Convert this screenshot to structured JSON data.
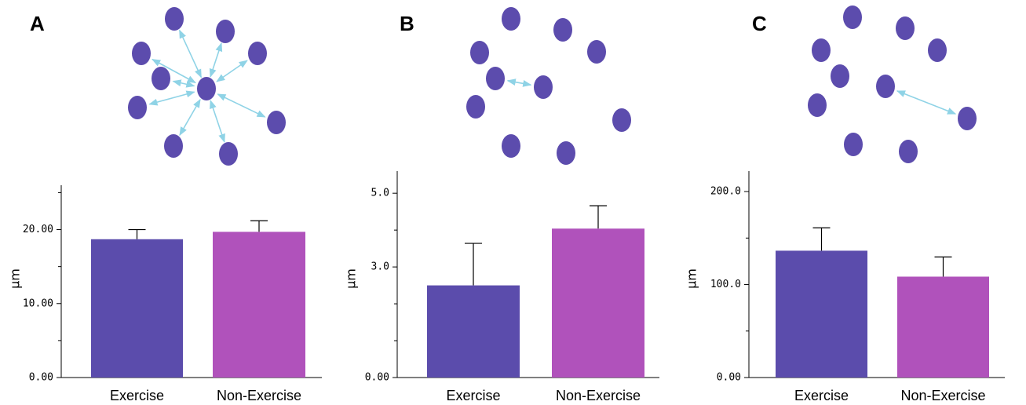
{
  "chart_data": [
    {
      "type": "bar",
      "panel_label": "A",
      "ylabel": "μm",
      "categories": [
        "Exercise",
        "Non-Exercise"
      ],
      "values": [
        18.7,
        19.7
      ],
      "errors": [
        1.3,
        1.5
      ],
      "colors": [
        "#5b4cac",
        "#b052bb"
      ],
      "ylim": [
        0,
        26
      ],
      "yticks": [
        {
          "value": 0,
          "label": "0.00"
        },
        {
          "value": 10,
          "label": "10.00"
        },
        {
          "value": 20,
          "label": "20.00"
        }
      ],
      "yminorticks": [
        5,
        15,
        25
      ]
    },
    {
      "type": "bar",
      "panel_label": "B",
      "ylabel": "μm",
      "categories": [
        "Exercise",
        "Non-Exercise"
      ],
      "values": [
        2.5,
        4.04
      ],
      "errors": [
        1.14,
        0.62
      ],
      "colors": [
        "#5b4cac",
        "#b052bb"
      ],
      "ylim": [
        0,
        5.6
      ],
      "yticks": [
        {
          "value": 0,
          "label": "0.00"
        },
        {
          "value": 3,
          "label": "3.0"
        },
        {
          "value": 5,
          "label": "5.0"
        }
      ],
      "yminorticks": [
        1,
        2,
        4
      ]
    },
    {
      "type": "bar",
      "panel_label": "C",
      "ylabel": "μm",
      "categories": [
        "Exercise",
        "Non-Exercise"
      ],
      "values": [
        136.4,
        108.5
      ],
      "errors": [
        24.6,
        21.2
      ],
      "colors": [
        "#5b4cac",
        "#b052bb"
      ],
      "ylim": [
        0,
        222
      ],
      "yticks": [
        {
          "value": 0,
          "label": "0.00"
        },
        {
          "value": 100,
          "label": "100.0"
        },
        {
          "value": 200,
          "label": "200.0"
        }
      ],
      "yminorticks": [
        50,
        150
      ]
    }
  ]
}
